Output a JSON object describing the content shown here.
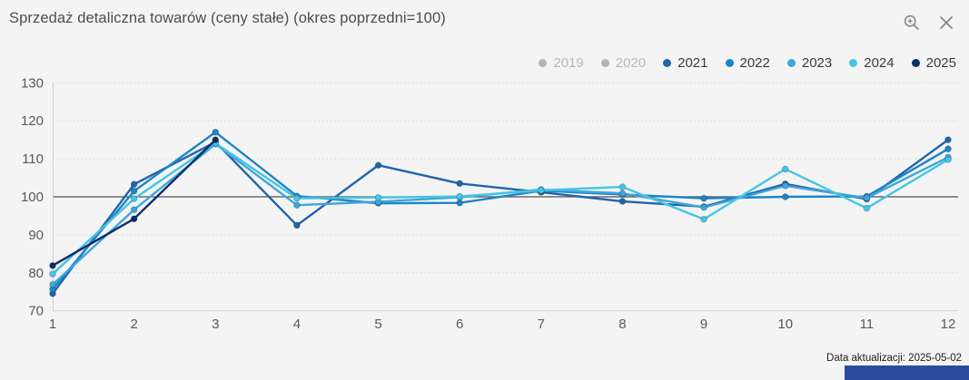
{
  "header": {
    "title": "Sprzedaż detaliczna towarów (ceny stałe) (okres poprzedni=100)",
    "icons": [
      {
        "name": "zoom-in-icon"
      },
      {
        "name": "close-icon"
      }
    ]
  },
  "legend": {
    "position": "top-right",
    "items": [
      {
        "label": "2019",
        "color": "#b4b4b4",
        "active": false
      },
      {
        "label": "2020",
        "color": "#b4b4b4",
        "active": false
      },
      {
        "label": "2021",
        "color": "#2065ab",
        "active": true
      },
      {
        "label": "2022",
        "color": "#1d85c6",
        "active": true
      },
      {
        "label": "2023",
        "color": "#3fa6d8",
        "active": true
      },
      {
        "label": "2024",
        "color": "#45c5e5",
        "active": true
      },
      {
        "label": "2025",
        "color": "#0b2d69",
        "active": true
      }
    ]
  },
  "chart_data": {
    "type": "line",
    "title": "Sprzedaż detaliczna towarów (ceny stałe) (okres poprzedni=100)",
    "x": [
      1,
      2,
      3,
      4,
      5,
      6,
      7,
      8,
      9,
      10,
      11,
      12
    ],
    "xlabel": "",
    "ylabel": "",
    "ylim": [
      70,
      130
    ],
    "yticks": [
      70,
      80,
      90,
      100,
      110,
      120,
      130
    ],
    "baseline": 100,
    "grid": "dotted-horizontal",
    "series": [
      {
        "name": "2019",
        "color": "#b4b4b4",
        "visible": false,
        "values": []
      },
      {
        "name": "2020",
        "color": "#b4b4b4",
        "visible": false,
        "values": []
      },
      {
        "name": "2021",
        "color": "#2065ab",
        "visible": true,
        "values": [
          74.5,
          103.3,
          114.4,
          92.5,
          108.3,
          103.5,
          101.2,
          98.8,
          97.4,
          103.4,
          99.4,
          115.0
        ]
      },
      {
        "name": "2022",
        "color": "#1d85c6",
        "visible": true,
        "values": [
          75.7,
          101.5,
          117.0,
          100.2,
          98.3,
          98.4,
          101.6,
          100.6,
          99.6,
          100.0,
          100.1,
          112.6
        ]
      },
      {
        "name": "2023",
        "color": "#3fa6d8",
        "visible": true,
        "values": [
          76.9,
          96.6,
          113.9,
          97.8,
          98.7,
          99.9,
          101.9,
          100.9,
          97.2,
          102.9,
          99.7,
          110.4
        ]
      },
      {
        "name": "2024",
        "color": "#45c5e5",
        "visible": true,
        "values": [
          79.7,
          99.5,
          114.1,
          99.6,
          99.8,
          100.1,
          101.7,
          102.6,
          94.1,
          107.3,
          97.0,
          109.8
        ]
      },
      {
        "name": "2025",
        "color": "#0b2d69",
        "visible": true,
        "values": [
          81.9,
          94.2,
          115.0,
          null,
          null,
          null,
          null,
          null,
          null,
          null,
          null,
          null
        ]
      }
    ]
  },
  "footer": {
    "update_label": "Data aktualizacji: 2025-05-02"
  },
  "colors": {
    "background": "#f4f4f4",
    "title_text": "#4d4d4d",
    "tick_text": "#595959",
    "gridline": "#d8d8d8",
    "baseline": "#4f4f4f",
    "axis": "#cfcfcf",
    "bottom_bar": "#2a4ba0"
  }
}
